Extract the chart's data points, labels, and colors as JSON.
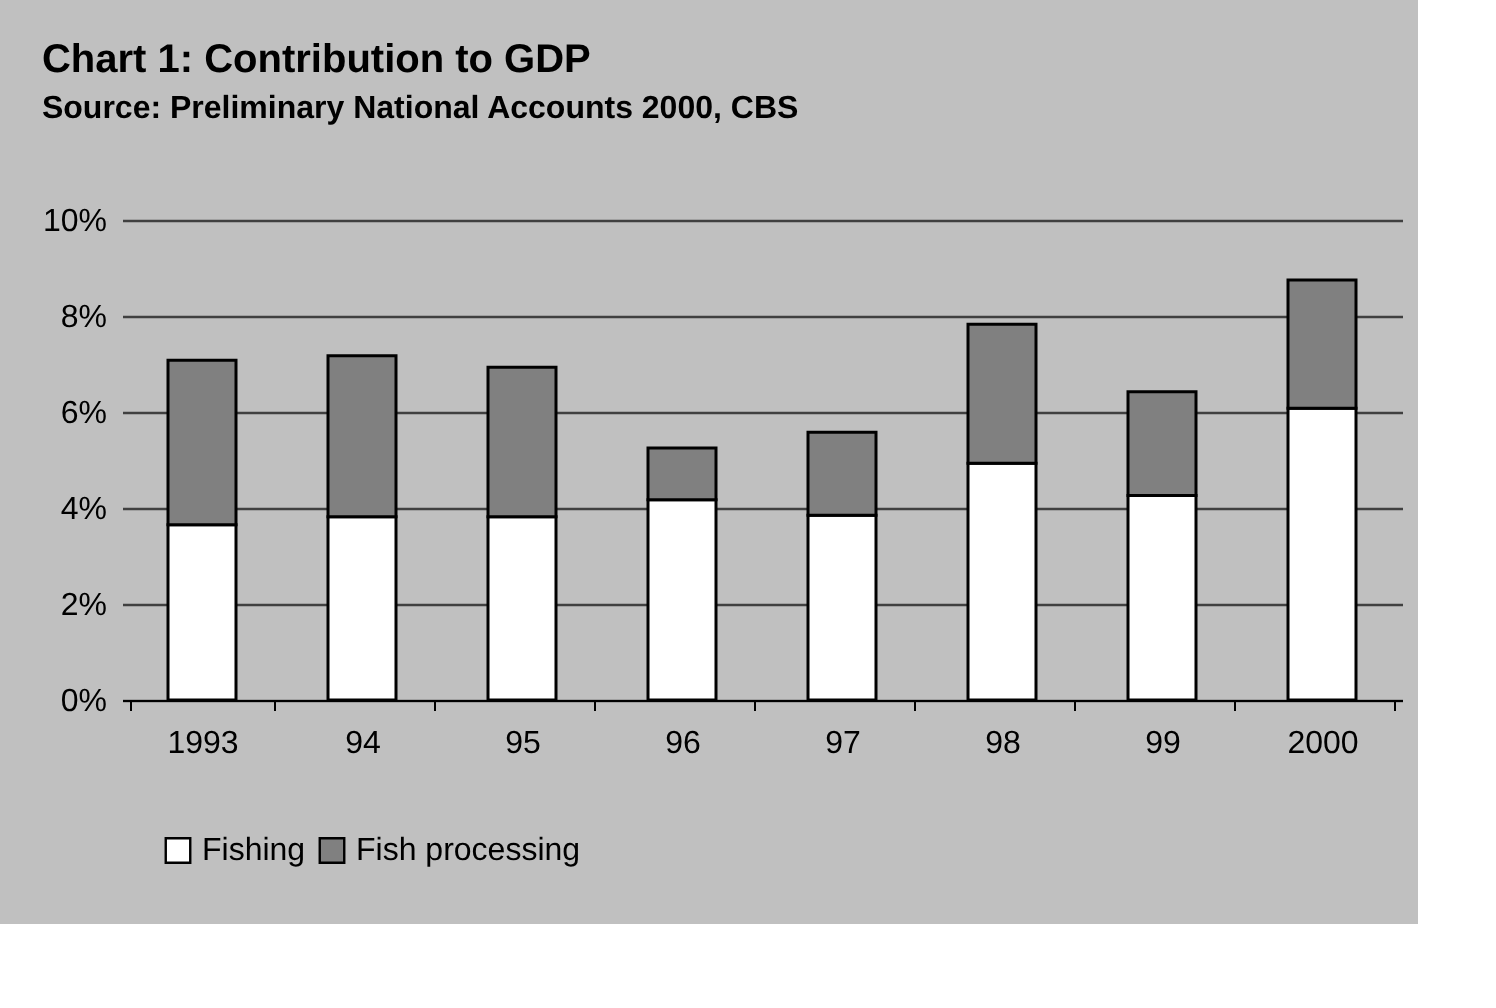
{
  "chart_data": {
    "type": "bar",
    "title": "Chart 1: Contribution to GDP",
    "subtitle": "Source: Preliminary National Accounts 2000, CBS",
    "categories": [
      "1993",
      "94",
      "95",
      "96",
      "97",
      "98",
      "99",
      "2000"
    ],
    "stacked": true,
    "series": [
      {
        "name": "Fishing",
        "color": "#ffffff",
        "values": [
          3.65,
          3.82,
          3.82,
          4.17,
          3.85,
          4.93,
          4.26,
          6.08
        ]
      },
      {
        "name": "Fish processing",
        "color": "#808080",
        "values": [
          3.43,
          3.35,
          3.11,
          1.08,
          1.73,
          2.9,
          2.16,
          2.67
        ]
      }
    ],
    "ylim": [
      0,
      10
    ],
    "yticks": [
      {
        "value": 0,
        "label": "0%"
      },
      {
        "value": 2,
        "label": "2%"
      },
      {
        "value": 4,
        "label": "4%"
      },
      {
        "value": 6,
        "label": "6%"
      },
      {
        "value": 8,
        "label": "8%"
      },
      {
        "value": 10,
        "label": "10%"
      }
    ],
    "grid": "y",
    "legend": "bottom"
  }
}
